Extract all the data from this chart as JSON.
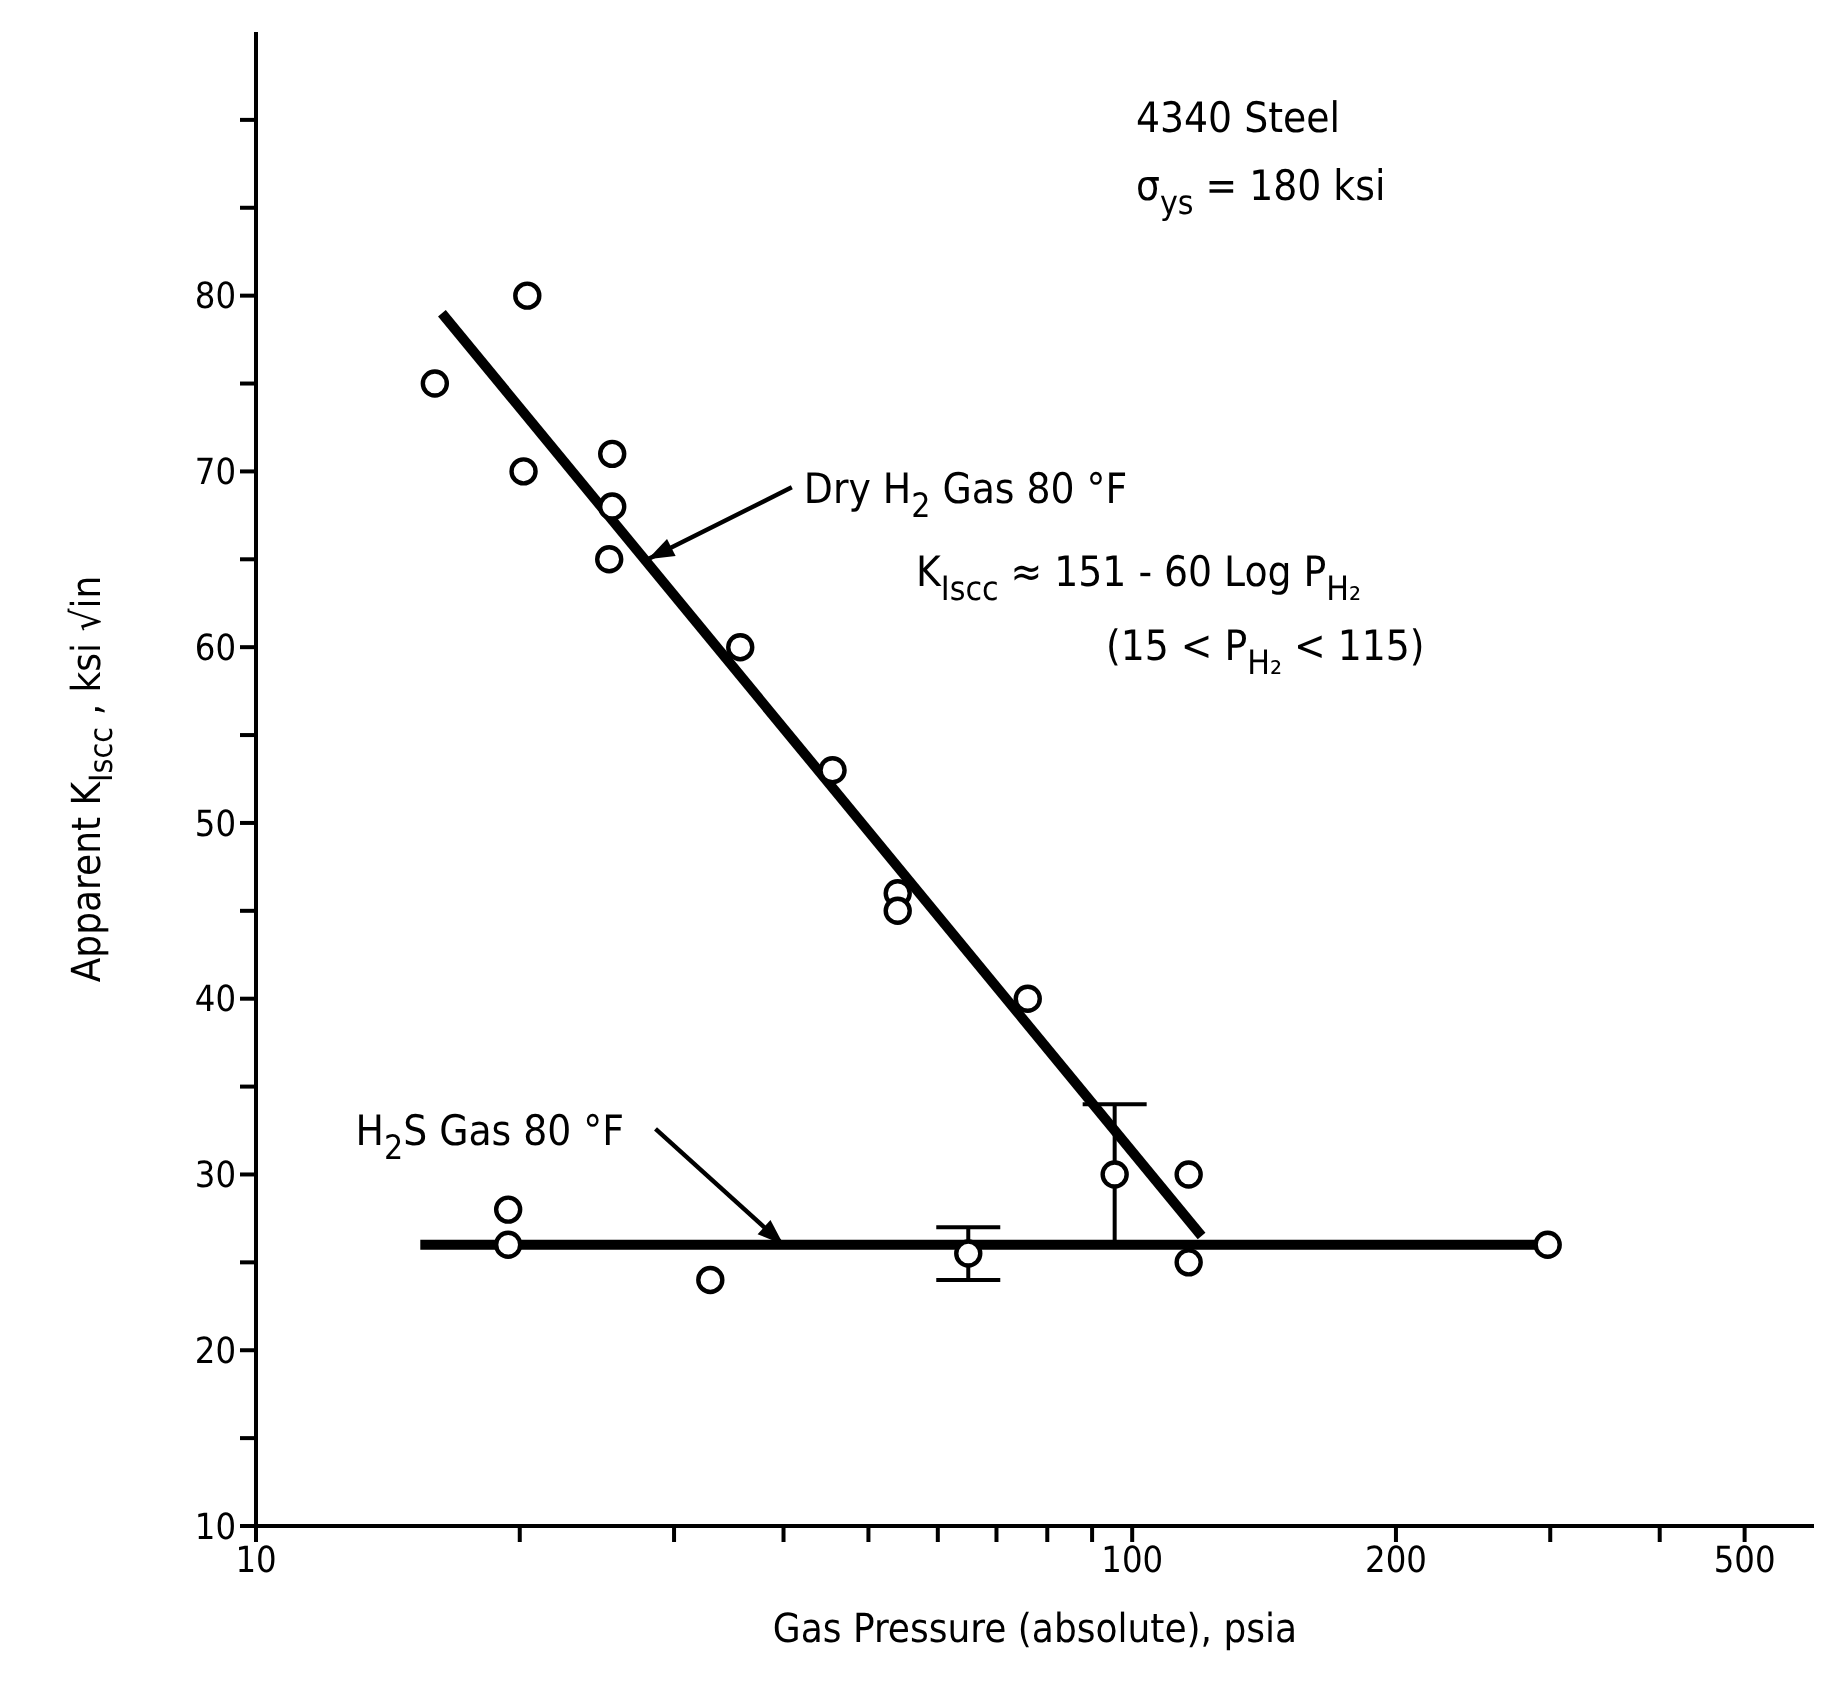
{
  "chart_data": {
    "type": "scatter",
    "xlabel": "Gas Pressure (absolute), psia",
    "ylabel": "Apparent K$_{Iscc}$ , ksi √in",
    "log": "x",
    "grid": false,
    "marker": "circle",
    "legend": false,
    "xlim": [
      10,
      600
    ],
    "xticks": [
      10,
      {
        "value": 20,
        "label": null
      },
      {
        "value": 30,
        "label": null
      },
      {
        "value": 40,
        "label": null
      },
      {
        "value": 50,
        "label": null
      },
      {
        "value": 60,
        "label": null
      },
      {
        "value": 70,
        "label": null
      },
      {
        "value": 80,
        "label": null
      },
      {
        "value": 90,
        "label": null
      },
      100,
      200,
      {
        "value": 300,
        "label": null
      },
      {
        "value": 400,
        "label": null
      },
      500
    ],
    "ylim": [
      10,
      95
    ],
    "yticks": [
      10,
      {
        "value": 15,
        "label": null
      },
      20,
      {
        "value": 25,
        "label": null
      },
      30,
      {
        "value": 35,
        "label": null
      },
      40,
      {
        "value": 45,
        "label": null
      },
      50,
      {
        "value": 55,
        "label": null
      },
      60,
      {
        "value": 65,
        "label": null
      },
      70,
      {
        "value": 75,
        "label": null
      },
      80,
      {
        "value": 85,
        "label": null
      },
      {
        "value": 90,
        "label": null
      }
    ],
    "series": [
      {
        "color": "#000000",
        "x": [
          16,
          20.4,
          20.2,
          25.5,
          25.5,
          25.3,
          35.7,
          45.5,
          54,
          54,
          76,
          95.5,
          116,
          116
        ],
        "values": [
          75,
          80,
          70,
          71,
          68,
          65,
          60,
          53,
          46,
          45,
          40,
          30,
          30,
          25
        ],
        "errors": [
          null,
          null,
          null,
          null,
          null,
          null,
          null,
          null,
          null,
          null,
          null,
          [
            26,
            34
          ],
          null,
          null
        ]
      },
      {
        "color": "#000000",
        "x": [
          19.4,
          19.4,
          33,
          65,
          298
        ],
        "values": [
          28,
          26,
          24,
          25.5,
          26
        ],
        "errors": [
          null,
          null,
          null,
          [
            24,
            27
          ],
          null
        ]
      },
      {
        "type": "line",
        "marker": "none",
        "color": "#000000",
        "x": [
          16.3,
          120
        ],
        "values": [
          79,
          26.5
        ]
      },
      {
        "type": "line",
        "marker": "none",
        "color": "#000000",
        "x": [
          15.4,
          298
        ],
        "values": [
          26,
          26
        ]
      }
    ],
    "annotations": [
      "4340 Steel",
      "σ$_{ys}$ = 180 ksi",
      "K$_{Iscc}$ ≈ 151 - 60 Log P$_{H₂}$",
      "(15 < P$_{H₂}$ < 115)",
      {
        "text": "Dry H$_{2}$ Gas 80 °F",
        "x": 28,
        "y": 65
      },
      {
        "text": "H$_{2}$S Gas 80 °F",
        "x": 40,
        "y": 26
      }
    ]
  }
}
